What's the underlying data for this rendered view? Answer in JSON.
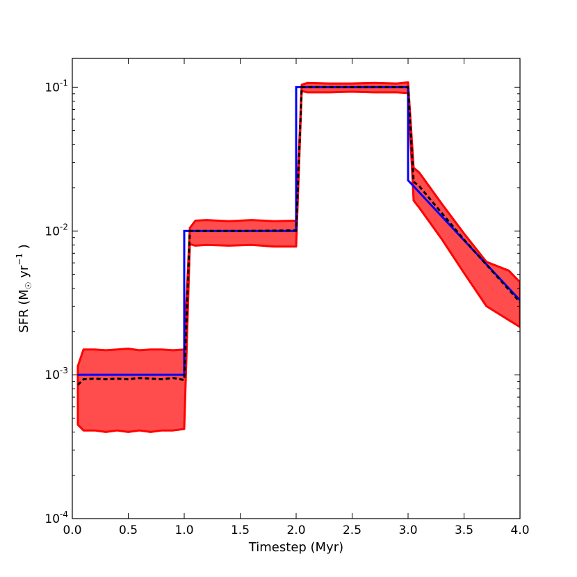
{
  "chart_data": {
    "type": "line",
    "title": "",
    "xlabel": "Timestep (Myr)",
    "ylabel": {
      "prefix": "SFR (M",
      "sun_symbol": "☉",
      "middle": " yr",
      "exponent": "−1",
      "suffix": " )"
    },
    "xlim": [
      0.0,
      4.0
    ],
    "ylim": [
      0.0001,
      0.1585
    ],
    "yscale": "log",
    "grid": false,
    "legend": "none",
    "x_ticks": [
      "0.0",
      "0.5",
      "1.0",
      "1.5",
      "2.0",
      "2.5",
      "3.0",
      "3.5",
      "4.0"
    ],
    "y_ticks": [
      {
        "base": "10",
        "exp": "-4"
      },
      {
        "base": "10",
        "exp": "-3"
      },
      {
        "base": "10",
        "exp": "-2"
      },
      {
        "base": "10",
        "exp": "-1"
      }
    ],
    "colors": {
      "band": "#ff0000",
      "band_fill": "#ff4d4d",
      "input": "#0000ff",
      "median": "#000000"
    },
    "series": [
      {
        "role": "input-sfr",
        "style": "solid-blue",
        "x": [
          0.05,
          1.0,
          1.0,
          2.0,
          2.0,
          3.0,
          3.0,
          4.0
        ],
        "values": [
          0.001,
          0.001,
          0.01,
          0.01,
          0.1,
          0.1,
          0.0225,
          0.0033
        ]
      },
      {
        "role": "median",
        "style": "dashed-black",
        "x": [
          0.05,
          0.1,
          0.2,
          0.3,
          0.4,
          0.5,
          0.6,
          0.7,
          0.8,
          0.9,
          1.0,
          1.05,
          1.1,
          1.5,
          2.0,
          2.05,
          2.1,
          2.5,
          3.0,
          3.05,
          3.1,
          3.5,
          4.0
        ],
        "values": [
          0.00085,
          0.00093,
          0.00094,
          0.00093,
          0.00094,
          0.00093,
          0.00095,
          0.00094,
          0.00093,
          0.00095,
          0.00092,
          0.01,
          0.01,
          0.01,
          0.0101,
          0.1,
          0.1,
          0.1,
          0.1,
          0.022,
          0.0205,
          0.0087,
          0.0032
        ]
      },
      {
        "role": "range-band",
        "style": "red-filled",
        "x": [
          0.05,
          0.1,
          0.2,
          0.3,
          0.4,
          0.5,
          0.6,
          0.7,
          0.8,
          0.9,
          1.0,
          1.05,
          1.1,
          1.2,
          1.4,
          1.6,
          1.8,
          2.0,
          2.05,
          2.1,
          2.3,
          2.5,
          2.7,
          2.9,
          3.0,
          3.05,
          3.1,
          3.3,
          3.5,
          3.7,
          3.9,
          4.0
        ],
        "upper": [
          0.00115,
          0.0015,
          0.0015,
          0.00148,
          0.0015,
          0.00152,
          0.00148,
          0.0015,
          0.0015,
          0.00148,
          0.0015,
          0.0105,
          0.0118,
          0.0119,
          0.0117,
          0.0119,
          0.0117,
          0.0118,
          0.104,
          0.107,
          0.106,
          0.106,
          0.107,
          0.106,
          0.108,
          0.0275,
          0.0255,
          0.0155,
          0.0096,
          0.0061,
          0.0053,
          0.0044
        ],
        "lower": [
          0.00045,
          0.00041,
          0.00041,
          0.0004,
          0.00041,
          0.0004,
          0.00041,
          0.0004,
          0.00041,
          0.00041,
          0.00042,
          0.0081,
          0.0079,
          0.008,
          0.0079,
          0.008,
          0.0078,
          0.0078,
          0.094,
          0.092,
          0.092,
          0.093,
          0.092,
          0.092,
          0.091,
          0.0163,
          0.0145,
          0.0088,
          0.0051,
          0.003,
          0.0024,
          0.00215
        ]
      }
    ]
  }
}
